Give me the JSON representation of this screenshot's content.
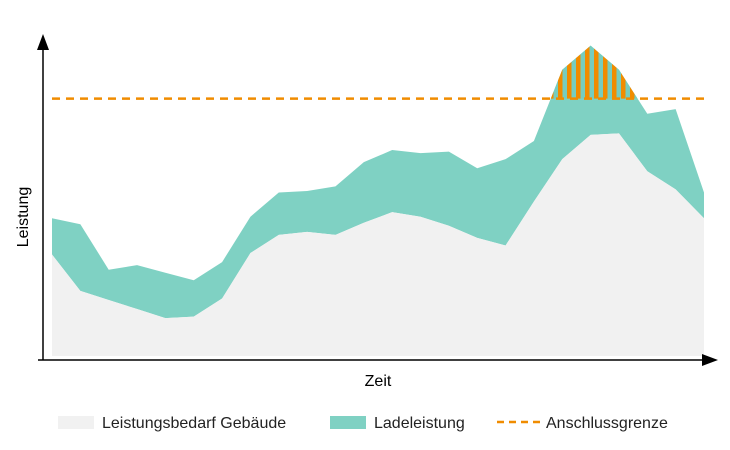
{
  "chart_data": {
    "type": "area",
    "xlabel": "Zeit",
    "ylabel": "Leistung",
    "stacked": true,
    "x": [
      0,
      1,
      2,
      3,
      4,
      5,
      6,
      7,
      8,
      9,
      10,
      11,
      12,
      13,
      14,
      15,
      16,
      17,
      18,
      19,
      20,
      21,
      22,
      23
    ],
    "series": [
      {
        "name": "Leistungsbedarf Gebäude",
        "color": "#f1f1f1",
        "values": [
          33.5,
          21.5,
          18.5,
          15.5,
          12.5,
          13,
          19,
          34,
          40,
          41,
          40,
          44,
          47.5,
          46,
          43,
          39,
          36.5,
          51,
          65,
          73,
          73.5,
          61,
          55,
          45.5
        ]
      },
      {
        "name": "Ladeleistung",
        "color": "#7fd1c3",
        "values": [
          12,
          22,
          10,
          14.5,
          15,
          12,
          12,
          12,
          14,
          13.5,
          16,
          20,
          20.5,
          21,
          24.5,
          23,
          28.5,
          20,
          29.5,
          29.5,
          21,
          19,
          26.5,
          8.5
        ]
      }
    ],
    "limit": {
      "name": "Anschlussgrenze",
      "value": 85,
      "color": "#f08c00",
      "style": "dashed"
    },
    "overload_fill": {
      "color1": "#f08c00",
      "color2": "#76cdbf",
      "pattern": "vertical-stripes"
    },
    "ylim": [
      0,
      105
    ],
    "grid": false,
    "ticks": false,
    "legend": "bottom"
  }
}
